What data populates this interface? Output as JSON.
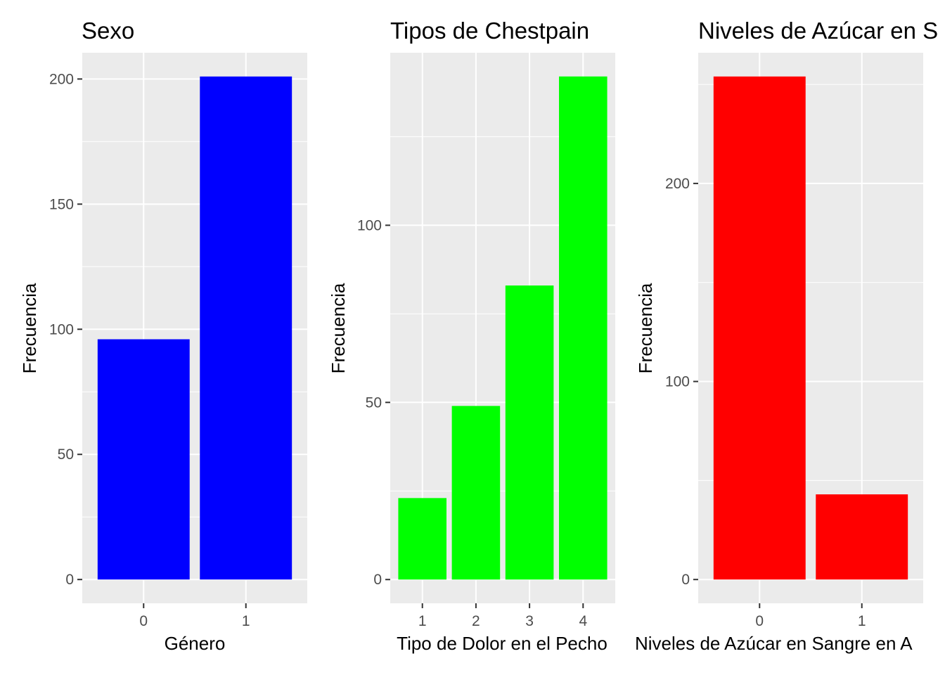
{
  "figure": {
    "background": "#ffffff"
  },
  "chart_data": [
    {
      "type": "bar",
      "title": "Sexo",
      "xlabel": "Género",
      "ylabel": "Frecuencia",
      "categories": [
        "0",
        "1"
      ],
      "values": [
        96,
        201
      ],
      "ylim": [
        -9.5,
        210.5
      ],
      "yticks": [
        "0",
        "50",
        "100",
        "150",
        "200"
      ],
      "ytick_values": [
        0,
        50,
        100,
        150,
        200
      ],
      "bar_color": "#0000ff",
      "panel_background": "#ebebeb",
      "grid": true
    },
    {
      "type": "bar",
      "title": "Tipos de Chestpain",
      "xlabel": "Tipo de Dolor en el Pecho",
      "ylabel": "Frecuencia",
      "categories": [
        "1",
        "2",
        "3",
        "4"
      ],
      "values": [
        23,
        49,
        83,
        142
      ],
      "ylim": [
        -6.7,
        148.7
      ],
      "yticks": [
        "0",
        "50",
        "100"
      ],
      "ytick_values": [
        0,
        50,
        100
      ],
      "bar_color": "#00ff00",
      "panel_background": "#ebebeb",
      "grid": true
    },
    {
      "type": "bar",
      "title": "Niveles de Azúcar en S",
      "xlabel": "Niveles de Azúcar en Sangre en A",
      "ylabel": "Frecuencia",
      "categories": [
        "0",
        "1"
      ],
      "values": [
        254,
        43
      ],
      "ylim": [
        -12.0,
        266.0
      ],
      "yticks": [
        "0",
        "100",
        "200"
      ],
      "ytick_values": [
        0,
        100,
        200
      ],
      "bar_color": "#ff0000",
      "panel_background": "#ebebeb",
      "grid": true
    }
  ]
}
